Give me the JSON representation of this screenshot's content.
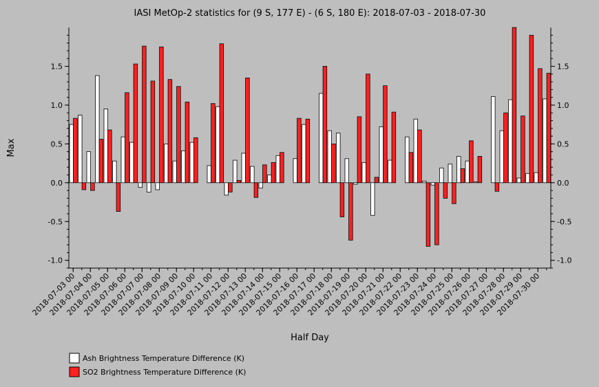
{
  "chart_data": {
    "type": "bar",
    "title": "IASI MetOp-2 statistics for (9 S, 177 E) - (6 S, 180 E): 2018-07-03 - 2018-07-30",
    "xlabel": "Half Day",
    "ylabel": "Max",
    "ylim": [
      -1.1,
      2.0
    ],
    "yticks": [
      -1.0,
      -0.5,
      0.0,
      0.5,
      1.0,
      1.5
    ],
    "ytick_labels": [
      "-1.0",
      "-0.5",
      "0.0",
      "0.5",
      "1.0",
      "1.5"
    ],
    "x_tick_labels": [
      "2018-07-03 00",
      "2018-07-04 00",
      "2018-07-05 00",
      "2018-07-06 00",
      "2018-07-07 00",
      "2018-07-08 00",
      "2018-07-09 00",
      "2018-07-10 00",
      "2018-07-11 00",
      "2018-07-12 00",
      "2018-07-13 00",
      "2018-07-14 00",
      "2018-07-15 00",
      "2018-07-16 00",
      "2018-07-17 00",
      "2018-07-18 00",
      "2018-07-19 00",
      "2018-07-20 00",
      "2018-07-21 00",
      "2018-07-22 00",
      "2018-07-23 00",
      "2018-07-24 00",
      "2018-07-25 00",
      "2018-07-26 00",
      "2018-07-27 00",
      "2018-07-28 00",
      "2018-07-29 00",
      "2018-07-30 00"
    ],
    "series": [
      {
        "name": "Ash Brightness Temperature Difference (K)",
        "color": "#ffffff",
        "values": [
          0.75,
          0.87,
          0.4,
          1.38,
          0.95,
          0.28,
          0.59,
          0.52,
          -0.06,
          -0.12,
          -0.09,
          0.5,
          0.28,
          0.41,
          0.52,
          null,
          0.22,
          0.98,
          -0.16,
          0.29,
          0.38,
          0.21,
          -0.07,
          0.1,
          0.35,
          null,
          0.31,
          0.75,
          null,
          1.15,
          0.67,
          0.64,
          0.31,
          -0.02,
          0.26,
          -0.42,
          0.72,
          0.29,
          null,
          0.59,
          0.82,
          0.02,
          -0.03,
          0.19,
          0.24,
          0.34,
          0.28,
          0.01,
          null,
          1.11,
          0.67,
          1.07,
          0.06,
          0.12,
          0.13,
          1.08
        ]
      },
      {
        "name": "SO2 Brightness Temperature Difference (K)",
        "color": "#ff2020",
        "values": [
          0.83,
          -0.09,
          -0.1,
          0.56,
          0.68,
          -0.37,
          1.16,
          1.53,
          1.76,
          1.31,
          1.75,
          1.33,
          1.24,
          1.04,
          0.58,
          null,
          1.02,
          1.79,
          -0.12,
          0.03,
          1.35,
          -0.19,
          0.23,
          0.26,
          0.39,
          null,
          0.83,
          0.82,
          null,
          1.5,
          0.5,
          -0.44,
          -0.74,
          0.85,
          1.4,
          0.07,
          1.25,
          0.91,
          null,
          0.39,
          0.68,
          -0.82,
          -0.8,
          -0.2,
          -0.27,
          0.18,
          0.54,
          0.34,
          null,
          -0.11,
          0.9,
          2.0,
          0.86,
          1.9,
          1.47,
          1.41
        ]
      }
    ],
    "legend_position": "bottom-left",
    "grid": false
  }
}
